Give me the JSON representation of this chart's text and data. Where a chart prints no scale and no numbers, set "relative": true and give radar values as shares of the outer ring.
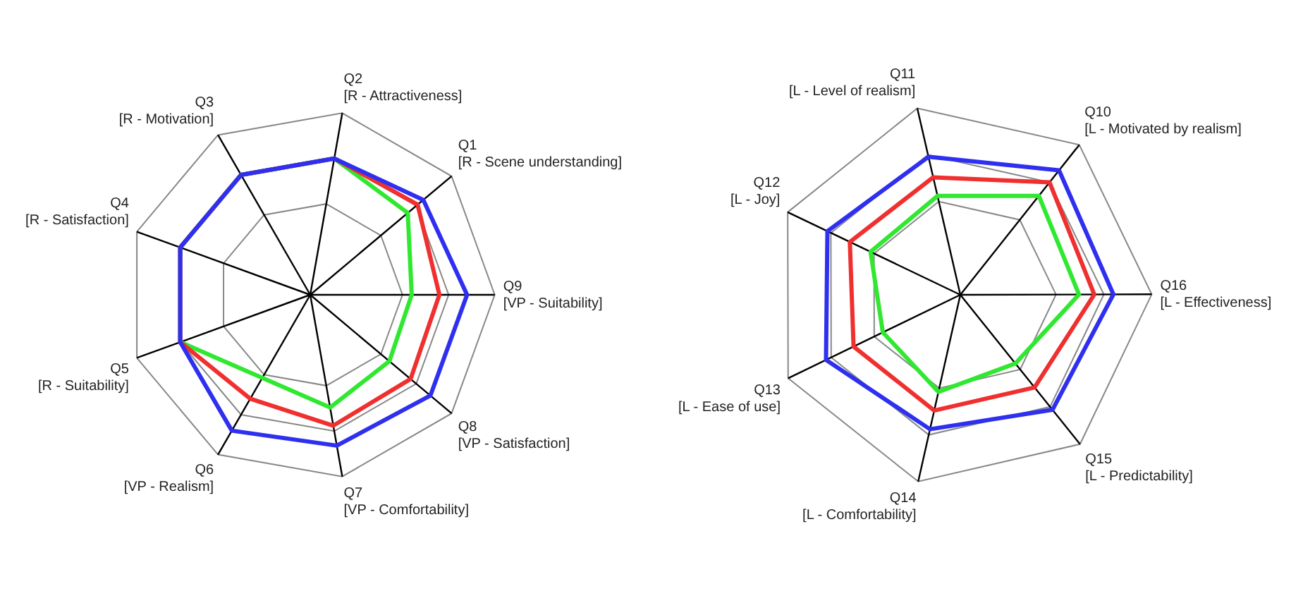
{
  "chart_data": [
    {
      "type": "radar",
      "relative": true,
      "grid": true,
      "legend": false,
      "marker": "none",
      "categories": [
        "Q2 [R - Attractiveness]",
        "Q1 [R - Scene understanding]",
        "Q9 [VP - Suitability]",
        "Q8 [VP - Satisfaction]",
        "Q7 [VP - Comfortability]",
        "Q6 [VP - Realism]",
        "Q5 [R - Suitability]",
        "Q4 [R - Satisfaction]",
        "Q3 [R - Motivation]"
      ],
      "series": [
        {
          "color": "#2f2ff0",
          "values": [
            0.75,
            0.8,
            0.85,
            0.85,
            0.83,
            0.85,
            0.75,
            0.75,
            0.75
          ]
        },
        {
          "color": "#f02f2f",
          "values": [
            0.75,
            0.76,
            0.7,
            0.71,
            0.72,
            0.65,
            0.75,
            0.75,
            0.75
          ]
        },
        {
          "color": "#2fe82f",
          "values": [
            0.75,
            0.69,
            0.55,
            0.56,
            0.62,
            0.52,
            0.75,
            0.75,
            0.75
          ]
        }
      ]
    },
    {
      "type": "radar",
      "relative": true,
      "grid": true,
      "legend": false,
      "marker": "none",
      "categories": [
        "Q11 [L - Level of realism]",
        "Q10 [L - Motivated by realism]",
        "Q16 [L - Effectiveness]",
        "Q15 [L - Predictability]",
        "Q14 [L - Comfortability]",
        "Q13 [L - Ease of use]",
        "Q12 [L - Joy]"
      ],
      "series": [
        {
          "color": "#2f2ff0",
          "values": [
            0.74,
            0.83,
            0.8,
            0.77,
            0.72,
            0.78,
            0.77
          ]
        },
        {
          "color": "#f02f2f",
          "values": [
            0.63,
            0.75,
            0.7,
            0.62,
            0.62,
            0.62,
            0.64
          ]
        },
        {
          "color": "#2fe82f",
          "values": [
            0.53,
            0.66,
            0.62,
            0.46,
            0.52,
            0.45,
            0.52
          ]
        }
      ]
    }
  ]
}
